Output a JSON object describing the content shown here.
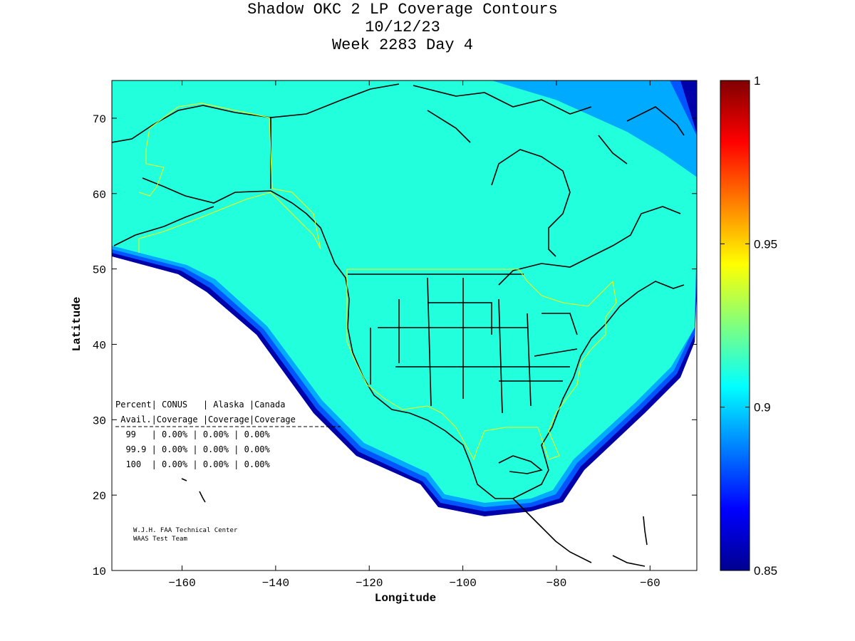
{
  "title": {
    "line1": "Shadow OKC 2 LP Coverage Contours",
    "line2": "10/12/23",
    "line3": "Week 2283 Day 4"
  },
  "axes": {
    "xlabel": "Longitude",
    "ylabel": "Latitude",
    "xlim": [
      -175,
      -50
    ],
    "ylim": [
      10,
      75
    ],
    "xticks": [
      -160,
      -140,
      -120,
      -100,
      -80,
      -60
    ],
    "yticks": [
      10,
      20,
      30,
      40,
      50,
      60,
      70
    ],
    "xtick_labels": [
      "−160",
      "−140",
      "−120",
      "−100",
      "−80",
      "−60"
    ],
    "ytick_labels": [
      "10",
      "20",
      "30",
      "40",
      "50",
      "60",
      "70"
    ]
  },
  "colorbar": {
    "min": 0.85,
    "max": 1,
    "tick_values": [
      0.85,
      0.9,
      0.95,
      1
    ],
    "tick_labels": [
      "0.85",
      "0.9",
      "0.95",
      "1"
    ],
    "colormap": "jet"
  },
  "colors": {
    "coverage_fill": "#22ffdd",
    "edge_dark": "#0000aa",
    "edge_mid": "#0055ff",
    "edge_light": "#00aaff",
    "service_boundary": "#ffff00",
    "coastline": "#000000"
  },
  "table": {
    "header1": "Percent| CONUS   | Alaska |Canada",
    "header2": " Avail.|Coverage |Coverage|Coverage",
    "rows": [
      "  99   | 0.00% | 0.00% | 0.00%",
      "  99.9 | 0.00% | 0.00% | 0.00%",
      "  100  | 0.00% | 0.00% | 0.00%"
    ]
  },
  "credit": {
    "line1": "W.J.H. FAA Technical Center",
    "line2": "WAAS Test Team"
  }
}
